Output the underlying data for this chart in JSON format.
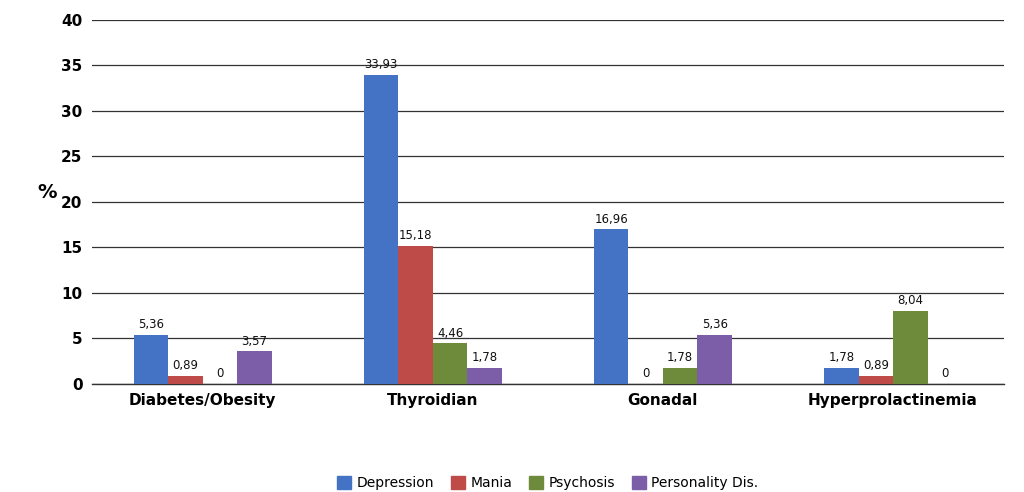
{
  "categories": [
    "Diabetes/Obesity",
    "Thyroidian",
    "Gonadal",
    "Hyperprolactinemia"
  ],
  "series": {
    "Depression": [
      5.36,
      33.93,
      16.96,
      1.78
    ],
    "Mania": [
      0.89,
      15.18,
      0,
      0.89
    ],
    "Psychosis": [
      0,
      4.46,
      1.78,
      8.04
    ],
    "Personality Dis.": [
      3.57,
      1.78,
      5.36,
      0
    ]
  },
  "colors": {
    "Depression": "#4472C4",
    "Mania": "#BE4B48",
    "Psychosis": "#6D8B3A",
    "Personality Dis.": "#7B5EA7"
  },
  "ylim": [
    0,
    40
  ],
  "yticks": [
    0,
    5,
    10,
    15,
    20,
    25,
    30,
    35,
    40
  ],
  "ylabel": "%",
  "bar_width": 0.15,
  "background_color": "#ffffff",
  "grid_color": "#333333",
  "label_fontsize": 8.5,
  "axis_fontsize": 11,
  "tick_fontsize": 11,
  "legend_fontsize": 10
}
